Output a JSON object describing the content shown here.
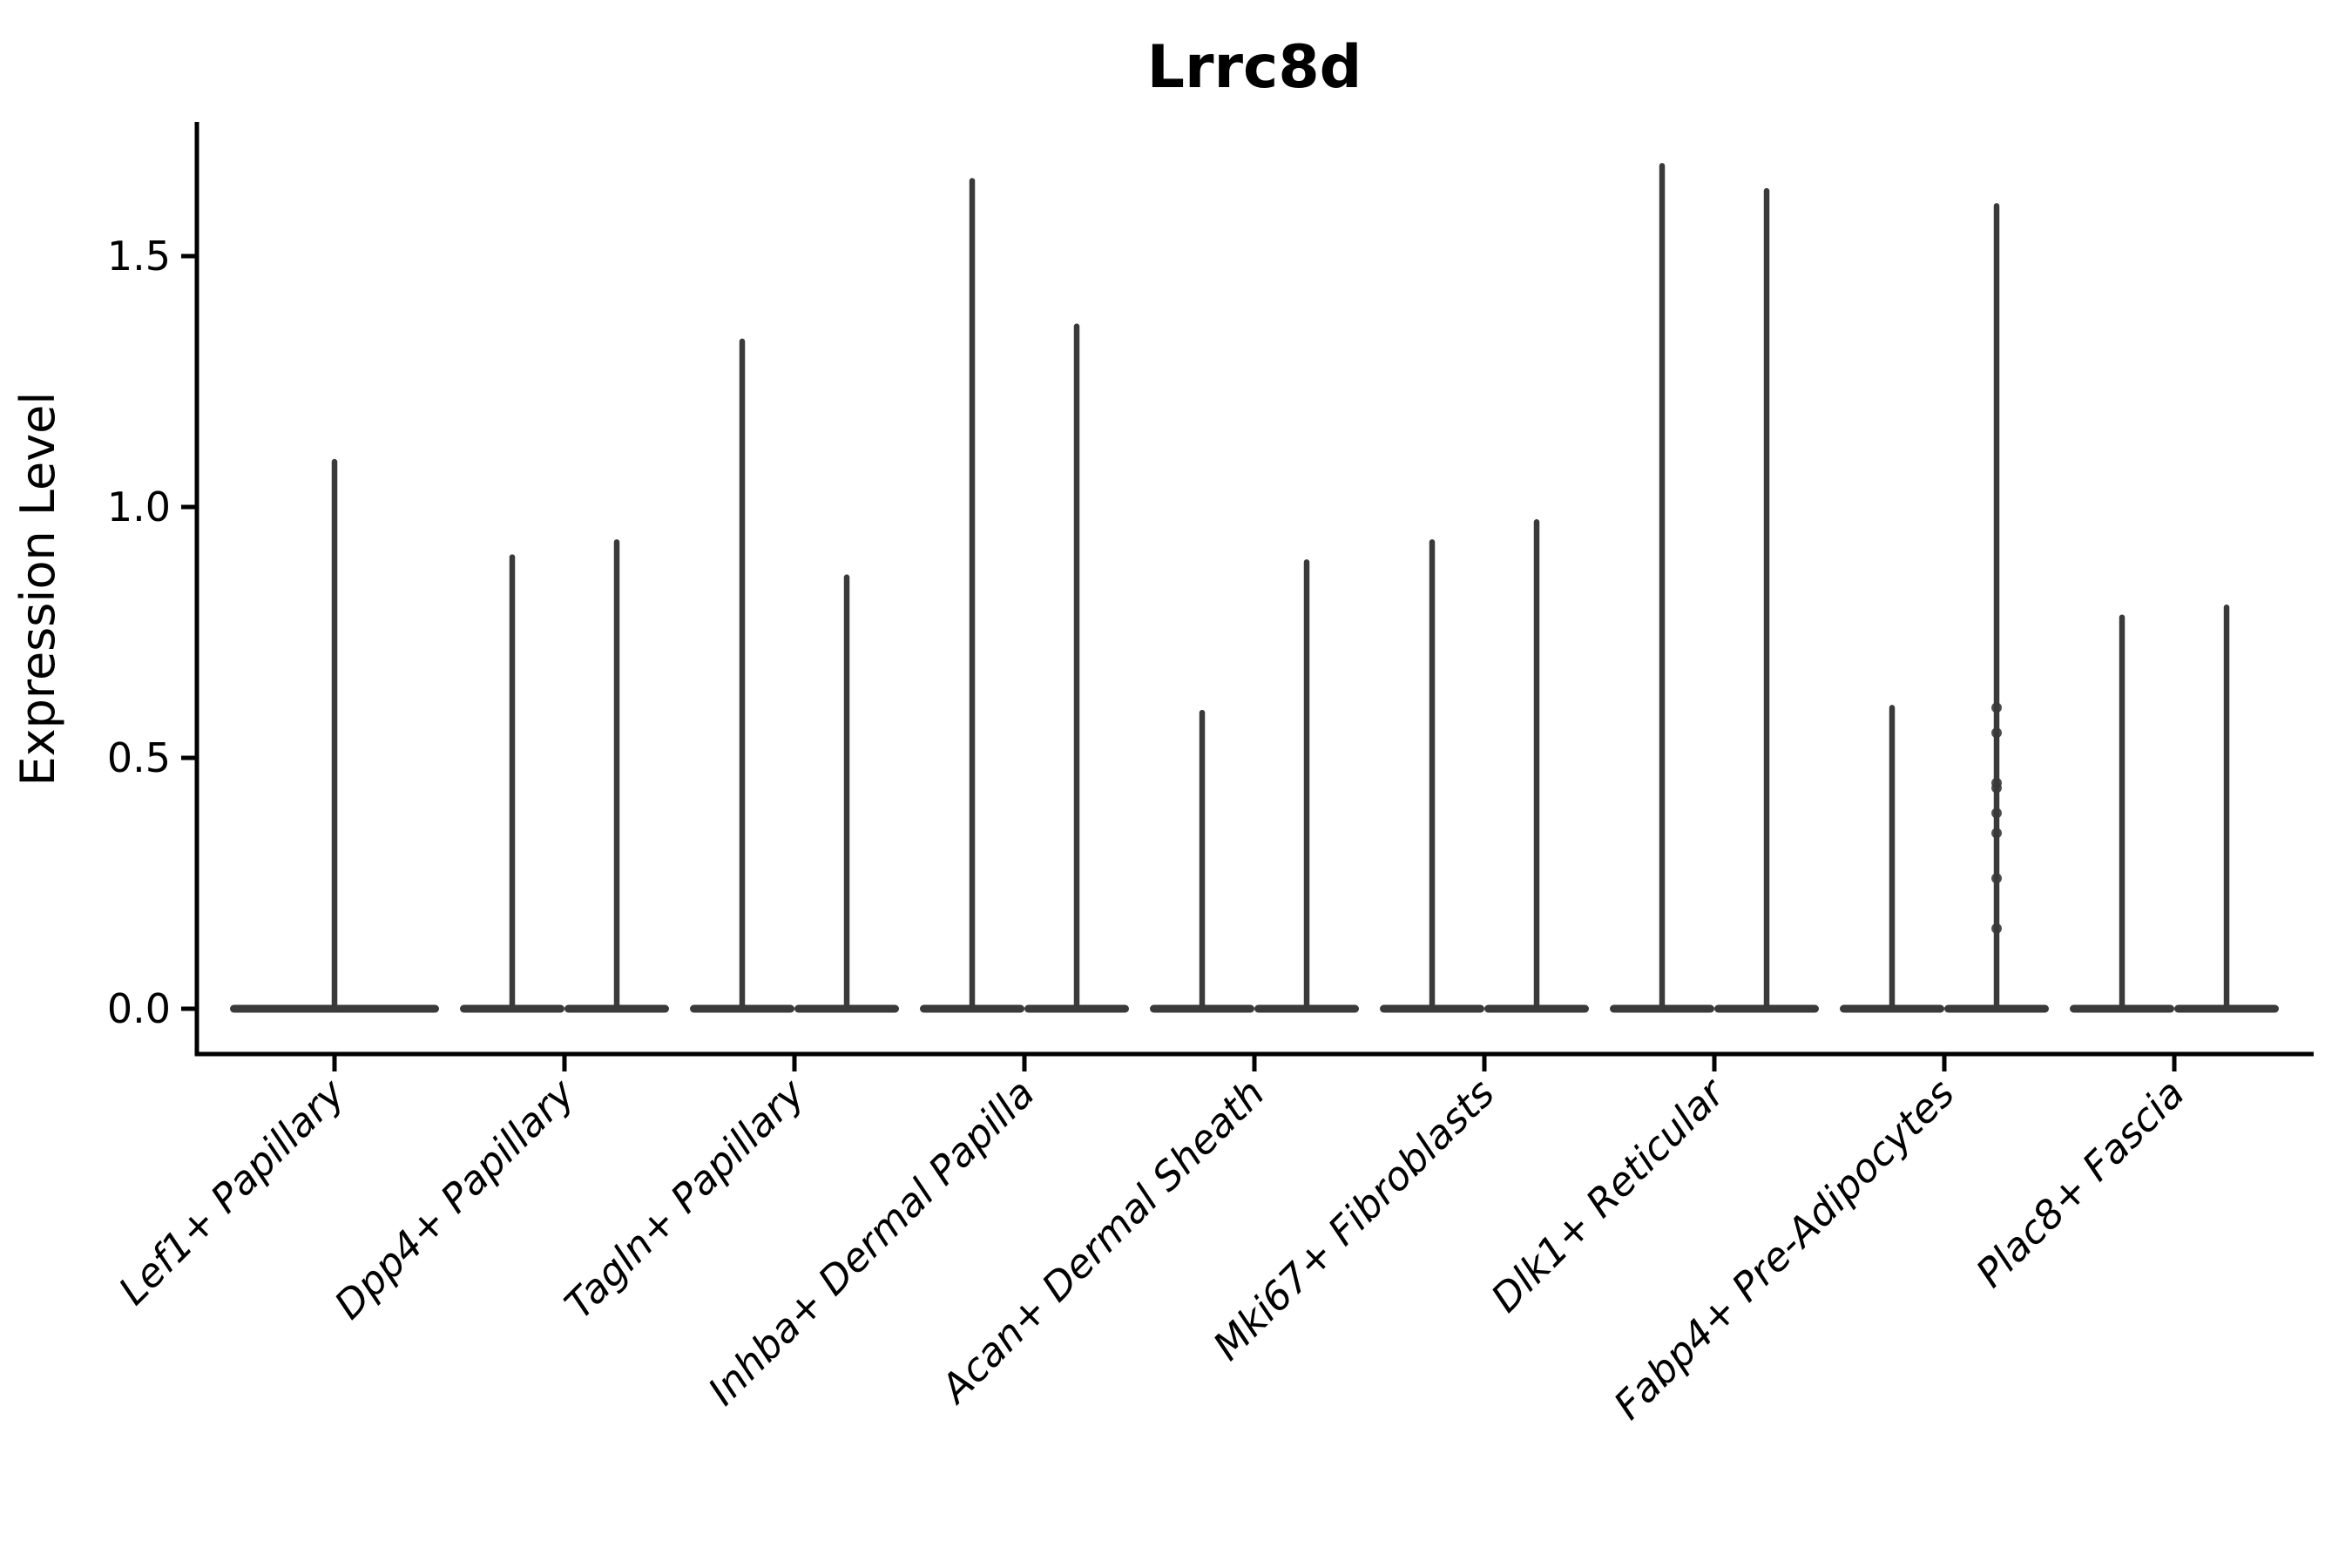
{
  "title": "Lrrc8d",
  "axes": {
    "ylabel": "Expression Level",
    "ytick_labels": [
      "0.0",
      "0.5",
      "1.0",
      "1.5"
    ],
    "ytick_values": [
      0.0,
      0.5,
      1.0,
      1.5
    ],
    "ylim": [
      -0.09,
      1.77
    ]
  },
  "chart_data": {
    "type": "violin",
    "title": "Lrrc8d",
    "xlabel": "",
    "ylabel": "Expression Level",
    "yticks": [
      0.0,
      0.5,
      1.0,
      1.5
    ],
    "ylim": [
      -0.09,
      1.77
    ],
    "grid": false,
    "legend": "none",
    "categories": [
      "Lef1+ Papillary",
      "Dpp4+ Papillary",
      "Tagln+ Papillary",
      "Inhba+ Dermal Papilla",
      "Acan+ Dermal Sheath",
      "Mki67+ Fibroblasts",
      "Dlk1+ Reticular",
      "Fabp4+ Pre-Adipocytes",
      "Plac8+ Fascia"
    ],
    "description": "Split violin plot; each category shows two narrow violins (one full-width violin for Lef1+ Papillary). Density is concentrated at 0 (flat base) with a thin spike up to each violin's maximum expression value.",
    "violin_max": [
      [
        1.09
      ],
      [
        0.9,
        0.93
      ],
      [
        1.33,
        0.86
      ],
      [
        1.65,
        1.36
      ],
      [
        0.59,
        0.89
      ],
      [
        0.93,
        0.97
      ],
      [
        1.68,
        1.63
      ],
      [
        0.6,
        1.6
      ],
      [
        0.78,
        0.8
      ]
    ],
    "overlay_points": {
      "category": "Fabp4+ Pre-Adipocytes",
      "violin_index": 1,
      "values": [
        0.6,
        0.55,
        0.45,
        0.44,
        0.39,
        0.35,
        0.26,
        0.16
      ]
    }
  },
  "style": {
    "violin_fill": "#3a3a3a",
    "violin_stroke": "#2e2e2e",
    "axis_color": "#000000",
    "background": "#ffffff"
  }
}
